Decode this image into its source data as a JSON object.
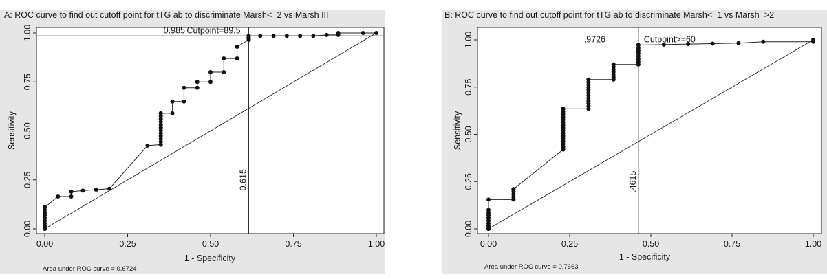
{
  "chart_data": [
    {
      "panel": "A",
      "type": "line",
      "title": "A: ROC curve to find out cutoff point for tTG ab to discriminate Marsh<=2 vs Marsh III",
      "xlabel": "1 - Specificity",
      "ylabel": "Sensitivity",
      "xlim": [
        0,
        1
      ],
      "ylim": [
        0,
        1
      ],
      "xticks": [
        "0.00",
        "0.25",
        "0.50",
        "0.75",
        "1.00"
      ],
      "yticks": [
        "0.00",
        "0.25",
        "0.50",
        "0.75",
        "1.00"
      ],
      "x": [
        0,
        0,
        0.04,
        0.08,
        0.08,
        0.115,
        0.155,
        0.195,
        0.31,
        0.35,
        0.35,
        0.385,
        0.385,
        0.42,
        0.42,
        0.46,
        0.46,
        0.5,
        0.5,
        0.54,
        0.54,
        0.58,
        0.58,
        0.615,
        0.615,
        0.65,
        0.69,
        0.73,
        0.77,
        0.81,
        0.85,
        0.885,
        0.885,
        0.96,
        1.0
      ],
      "y": [
        0,
        0.11,
        0.165,
        0.165,
        0.19,
        0.195,
        0.2,
        0.205,
        0.425,
        0.43,
        0.59,
        0.59,
        0.65,
        0.65,
        0.72,
        0.72,
        0.75,
        0.75,
        0.8,
        0.8,
        0.87,
        0.87,
        0.93,
        0.965,
        0.985,
        0.985,
        0.985,
        0.985,
        0.985,
        0.985,
        0.99,
        0.99,
        1.0,
        1.0,
        1.0
      ],
      "point_clusters": [
        {
          "x": 0,
          "y_range": [
            0,
            0.11
          ]
        },
        {
          "x": 0.35,
          "y_range": [
            0.43,
            0.59
          ]
        },
        {
          "x": 0.615,
          "y_range": [
            0.965,
            0.985
          ]
        }
      ],
      "sensitivity_line": 0.985,
      "sensitivity_label": "0.985",
      "specificity_line": 0.615,
      "specificity_label": "0.615",
      "cutpoint_label": "Cutpoint=89.5",
      "auc_label": "Area under ROC curve = 0.6724"
    },
    {
      "panel": "B",
      "type": "line",
      "title": "B: ROC curve to find out cutoff point for tTG ab to discriminate Marsh<=1 vs Marsh=>2",
      "xlabel": "1 - Specificity",
      "ylabel": "Sensitivity",
      "xlim": [
        0,
        1
      ],
      "ylim": [
        0,
        1
      ],
      "xticks": [
        "0.00",
        "0.25",
        "0.50",
        "0.75",
        "1.00"
      ],
      "yticks": [
        "0.00",
        "0.25",
        "0.50",
        "0.75",
        "1.00"
      ],
      "x": [
        0,
        0,
        0.077,
        0.077,
        0.23,
        0.23,
        0.308,
        0.308,
        0.385,
        0.385,
        0.4615,
        0.4615,
        0.54,
        0.615,
        0.69,
        0.77,
        0.846,
        1.0,
        1.0
      ],
      "y": [
        0,
        0.155,
        0.155,
        0.21,
        0.42,
        0.635,
        0.635,
        0.79,
        0.79,
        0.87,
        0.87,
        0.9726,
        0.975,
        0.978,
        0.98,
        0.983,
        0.99,
        0.99,
        1.0
      ],
      "point_clusters": [
        {
          "x": 0,
          "y_range": [
            0,
            0.1
          ]
        },
        {
          "x": 0.077,
          "y_range": [
            0.155,
            0.21
          ]
        },
        {
          "x": 0.23,
          "y_range": [
            0.42,
            0.635
          ]
        },
        {
          "x": 0.308,
          "y_range": [
            0.635,
            0.79
          ]
        },
        {
          "x": 0.385,
          "y_range": [
            0.79,
            0.87
          ]
        },
        {
          "x": 0.4615,
          "y_range": [
            0.87,
            0.9726
          ]
        }
      ],
      "sensitivity_line": 0.9726,
      "sensitivity_label": ".9726",
      "specificity_line": 0.4615,
      "specificity_label": ".4615",
      "cutpoint_label": "Cutpoint>=60",
      "auc_label": "Area under ROC curve = 0.7663"
    }
  ]
}
